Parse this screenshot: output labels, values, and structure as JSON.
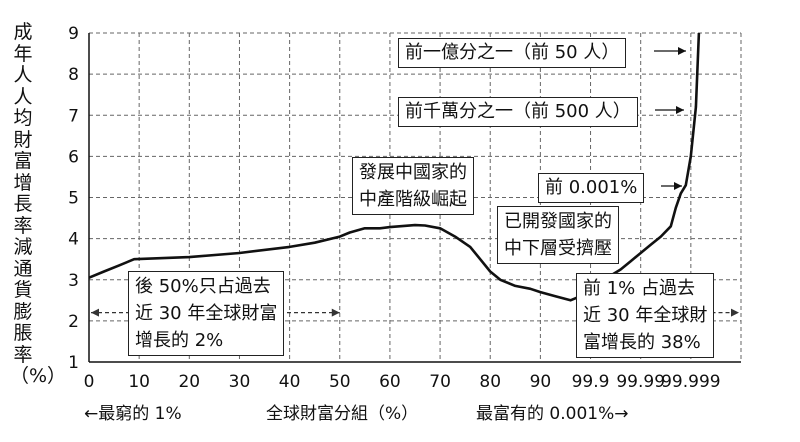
{
  "chart_data": {
    "type": "line",
    "ylabel": "成年人人均財富增長率減通貨膨脹率（%）",
    "xlabel": "全球財富分組（%）",
    "x_left_note": "←最窮的 1%",
    "x_right_note": "最富有的 0.001%→",
    "ylim": [
      1,
      9
    ],
    "yticks": [
      "1",
      "2",
      "3",
      "4",
      "5",
      "6",
      "7",
      "8",
      "9"
    ],
    "xticks": [
      "0",
      "10",
      "20",
      "30",
      "40",
      "50",
      "60",
      "70",
      "80",
      "90",
      "99.9",
      "99.99",
      "99.999"
    ],
    "grid": true,
    "series": [
      {
        "x": [
          0,
          3,
          6,
          9,
          20,
          30,
          40,
          45,
          50,
          52,
          55,
          58,
          60,
          65,
          67,
          70,
          73,
          76,
          78,
          80,
          82,
          85,
          88,
          90,
          93,
          96,
          98,
          100,
          102,
          104,
          106,
          108,
          110,
          112,
          114,
          116,
          117,
          118,
          119,
          120,
          121,
          121.6
        ],
        "y": [
          3.05,
          3.2,
          3.35,
          3.5,
          3.55,
          3.65,
          3.8,
          3.9,
          4.05,
          4.15,
          4.25,
          4.25,
          4.28,
          4.33,
          4.32,
          4.25,
          4.05,
          3.8,
          3.5,
          3.2,
          3.0,
          2.85,
          2.78,
          2.7,
          2.6,
          2.5,
          2.6,
          2.75,
          2.95,
          3.1,
          3.25,
          3.45,
          3.65,
          3.85,
          4.05,
          4.3,
          4.75,
          5.1,
          5.3,
          6.0,
          7.2,
          9.0
        ]
      }
    ],
    "annotations": {
      "top50": "前一億分之一（前 50 人）",
      "top500": "前千萬分之一（前 500 人）",
      "top0001": "前 0.001%",
      "dev_line1": "發展中國家的",
      "dev_line2": "中產階級崛起",
      "adv_line1": "已開發國家的",
      "adv_line2": "中下層受擠壓",
      "bottom_line1": "後 50%只占過去",
      "bottom_line2": "近 30 年全球財富",
      "bottom_line3": "增長的 2%",
      "top1_line1": "前 1% 占過去",
      "top1_line2": "近 30 年全球財",
      "top1_line3": "富增長的 38%"
    }
  }
}
